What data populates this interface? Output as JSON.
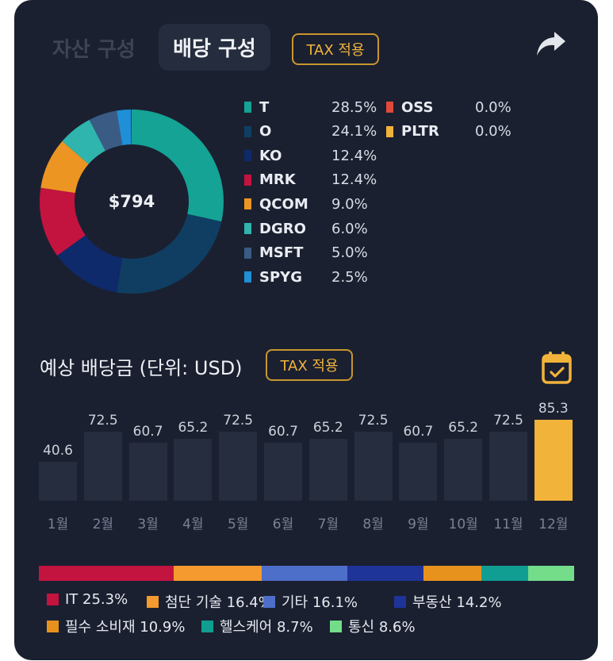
{
  "tabs": {
    "asset": "자산 구성",
    "dividend": "배당 구성"
  },
  "tax_label": "TAX 적용",
  "donut": {
    "center": "$794",
    "items": [
      {
        "name": "T",
        "pct": "28.5%",
        "value": 28.5,
        "color": "#14a394"
      },
      {
        "name": "O",
        "pct": "24.1%",
        "value": 24.1,
        "color": "#0f3e62"
      },
      {
        "name": "KO",
        "pct": "12.4%",
        "value": 12.4,
        "color": "#0e2a6b"
      },
      {
        "name": "MRK",
        "pct": "12.4%",
        "value": 12.4,
        "color": "#c3133f"
      },
      {
        "name": "QCOM",
        "pct": "9.0%",
        "value": 9.0,
        "color": "#ec9522"
      },
      {
        "name": "DGRO",
        "pct": "6.0%",
        "value": 6.0,
        "color": "#2fb5ad"
      },
      {
        "name": "MSFT",
        "pct": "5.0%",
        "value": 5.0,
        "color": "#3a5c84"
      },
      {
        "name": "SPYG",
        "pct": "2.5%",
        "value": 2.5,
        "color": "#1f8fd8"
      },
      {
        "name": "OSS",
        "pct": "0.0%",
        "value": 0.0,
        "color": "#e04a3a"
      },
      {
        "name": "PLTR",
        "pct": "0.0%",
        "value": 0.0,
        "color": "#f2b33a"
      }
    ]
  },
  "forecast": {
    "title": "예상 배당금 (단위: USD)"
  },
  "chart_data": {
    "type": "bar",
    "categories": [
      "1월",
      "2월",
      "3월",
      "4월",
      "5월",
      "6월",
      "7월",
      "8월",
      "9월",
      "10월",
      "11월",
      "12월"
    ],
    "values": [
      40.6,
      72.5,
      60.7,
      65.2,
      72.5,
      60.7,
      65.2,
      72.5,
      60.7,
      65.2,
      72.5,
      85.3
    ],
    "highlight_index": 11,
    "bar_color": "#262d3e",
    "highlight_color": "#f2b33a"
  },
  "sectors": [
    {
      "name": "IT",
      "pct": "25.3%",
      "value": 25.3,
      "color": "#c3133f"
    },
    {
      "name": "첨단 기술",
      "pct": "16.4%",
      "value": 16.4,
      "color": "#f59a2e"
    },
    {
      "name": "기타",
      "pct": "16.1%",
      "value": 16.1,
      "color": "#4d6fc9"
    },
    {
      "name": "부동산",
      "pct": "14.2%",
      "value": 14.2,
      "color": "#1f3499"
    },
    {
      "name": "필수 소비재",
      "pct": "10.9%",
      "value": 10.9,
      "color": "#e8921e"
    },
    {
      "name": "헬스케어",
      "pct": "8.7%",
      "value": 8.7,
      "color": "#119e92"
    },
    {
      "name": "통신",
      "pct": "8.6%",
      "value": 8.6,
      "color": "#74dd8a"
    }
  ]
}
